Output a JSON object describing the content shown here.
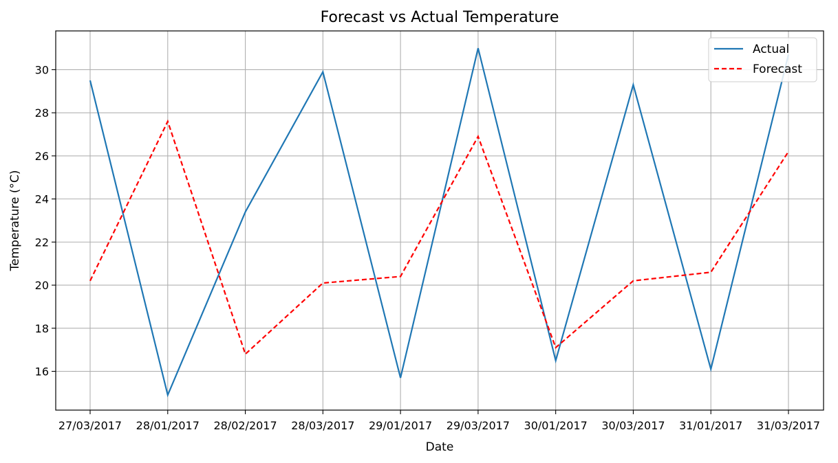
{
  "chart_data": {
    "type": "line",
    "title": "Forecast vs Actual Temperature",
    "xlabel": "Date",
    "ylabel": "Temperature (°C)",
    "categories": [
      "27/03/2017",
      "28/01/2017",
      "28/02/2017",
      "28/03/2017",
      "29/01/2017",
      "29/03/2017",
      "30/01/2017",
      "30/03/2017",
      "31/01/2017",
      "31/03/2017"
    ],
    "yticks": [
      16,
      18,
      20,
      22,
      24,
      26,
      28,
      30
    ],
    "ylim": [
      14.2,
      31.8
    ],
    "grid": true,
    "legend_position": "upper-right",
    "series": [
      {
        "name": "Actual",
        "color": "#1f77b4",
        "style": "solid",
        "values": [
          29.5,
          14.9,
          23.4,
          29.9,
          15.7,
          31.0,
          16.5,
          29.3,
          16.1,
          30.7
        ]
      },
      {
        "name": "Forecast",
        "color": "#ff0000",
        "style": "dashed",
        "values": [
          20.2,
          27.6,
          16.8,
          20.1,
          20.4,
          26.9,
          17.1,
          20.2,
          20.6,
          26.2
        ]
      }
    ]
  }
}
